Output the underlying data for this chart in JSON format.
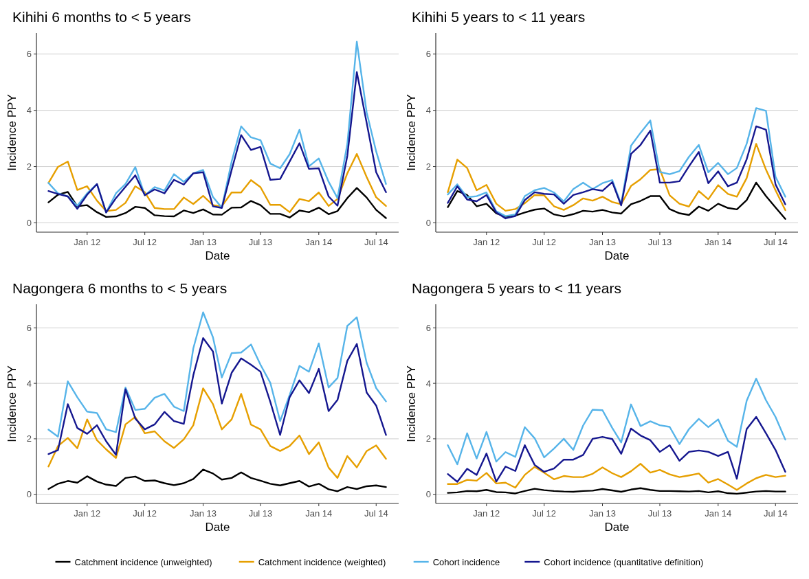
{
  "chart_data": [
    {
      "type": "line",
      "title": "Kihihi 6 months to < 5 years",
      "xlabel": "Date",
      "ylabel": "Incidence PPY",
      "x": [
        "2011-09",
        "2011-10",
        "2011-11",
        "2011-12",
        "2012-01",
        "2012-02",
        "2012-03",
        "2012-04",
        "2012-05",
        "2012-06",
        "2012-07",
        "2012-08",
        "2012-09",
        "2012-10",
        "2012-11",
        "2012-12",
        "2013-01",
        "2013-02",
        "2013-03",
        "2013-04",
        "2013-05",
        "2013-06",
        "2013-07",
        "2013-08",
        "2013-09",
        "2013-10",
        "2013-11",
        "2013-12",
        "2014-01",
        "2014-02",
        "2014-03",
        "2014-04",
        "2014-05",
        "2014-06",
        "2014-07",
        "2014-08"
      ],
      "xlim": [
        "2011-07-25",
        "2014-09-10"
      ],
      "xticks": [
        {
          "value": "2012-01",
          "label": "Jan 12"
        },
        {
          "value": "2012-07",
          "label": "Jul 12"
        },
        {
          "value": "2013-01",
          "label": "Jan 13"
        },
        {
          "value": "2013-07",
          "label": "Jul 13"
        },
        {
          "value": "2014-01",
          "label": "Jan 14"
        },
        {
          "value": "2014-07",
          "label": "Jul 14"
        }
      ],
      "ylim": [
        -0.33,
        6.75
      ],
      "yticks": [
        0,
        2,
        4,
        6
      ],
      "grid": "y",
      "legend": "bottom",
      "series": [
        {
          "name": "Catchment incidence (unweighted)",
          "color": "#000000",
          "values": [
            0.73,
            1.0,
            1.1,
            0.59,
            0.63,
            0.38,
            0.21,
            0.23,
            0.35,
            0.57,
            0.53,
            0.27,
            0.24,
            0.23,
            0.44,
            0.35,
            0.48,
            0.3,
            0.29,
            0.54,
            0.55,
            0.78,
            0.63,
            0.32,
            0.32,
            0.19,
            0.44,
            0.38,
            0.54,
            0.31,
            0.42,
            0.88,
            1.24,
            0.9,
            0.46,
            0.17
          ]
        },
        {
          "name": "Catchment incidence (weighted)",
          "color": "#e69f00",
          "values": [
            1.42,
            1.99,
            2.18,
            1.17,
            1.3,
            0.79,
            0.42,
            0.46,
            0.71,
            1.3,
            1.09,
            0.53,
            0.49,
            0.49,
            0.9,
            0.67,
            0.96,
            0.63,
            0.59,
            1.08,
            1.08,
            1.52,
            1.27,
            0.64,
            0.64,
            0.38,
            0.85,
            0.77,
            1.08,
            0.6,
            0.85,
            1.76,
            2.45,
            1.63,
            0.91,
            0.6
          ]
        },
        {
          "name": "Cohort incidence",
          "color": "#56b4e9",
          "values": [
            1.42,
            1.05,
            0.94,
            0.61,
            1.05,
            1.38,
            0.37,
            1.05,
            1.38,
            1.98,
            0.98,
            1.27,
            1.15,
            1.73,
            1.46,
            1.76,
            1.88,
            0.92,
            0.54,
            2.18,
            3.43,
            3.04,
            2.94,
            2.11,
            1.94,
            2.44,
            3.31,
            2.01,
            2.29,
            1.46,
            0.88,
            2.8,
            6.44,
            3.93,
            2.54,
            1.38
          ]
        },
        {
          "name": "Cohort incidence (quantitative definition)",
          "color": "#15178f",
          "values": [
            1.13,
            1.03,
            0.94,
            0.5,
            1.0,
            1.38,
            0.37,
            0.88,
            1.28,
            1.69,
            0.98,
            1.19,
            1.05,
            1.53,
            1.36,
            1.76,
            1.8,
            0.59,
            0.53,
            1.88,
            3.12,
            2.59,
            2.7,
            1.53,
            1.56,
            2.18,
            2.83,
            1.92,
            1.94,
            0.94,
            0.61,
            2.38,
            5.36,
            3.56,
            1.8,
            1.09
          ]
        }
      ]
    },
    {
      "type": "line",
      "title": "Kihihi 5 years to < 11 years",
      "xlabel": "Date",
      "ylabel": "Incidence PPY",
      "x": [
        "2011-09",
        "2011-10",
        "2011-11",
        "2011-12",
        "2012-01",
        "2012-02",
        "2012-03",
        "2012-04",
        "2012-05",
        "2012-06",
        "2012-07",
        "2012-08",
        "2012-09",
        "2012-10",
        "2012-11",
        "2012-12",
        "2013-01",
        "2013-02",
        "2013-03",
        "2013-04",
        "2013-05",
        "2013-06",
        "2013-07",
        "2013-08",
        "2013-09",
        "2013-10",
        "2013-11",
        "2013-12",
        "2014-01",
        "2014-02",
        "2014-03",
        "2014-04",
        "2014-05",
        "2014-06",
        "2014-07",
        "2014-08"
      ],
      "xlim": [
        "2011-07-25",
        "2014-09-10"
      ],
      "xticks": [
        {
          "value": "2012-01",
          "label": "Jan 12"
        },
        {
          "value": "2012-07",
          "label": "Jul 12"
        },
        {
          "value": "2013-01",
          "label": "Jan 13"
        },
        {
          "value": "2013-07",
          "label": "Jul 13"
        },
        {
          "value": "2014-01",
          "label": "Jan 14"
        },
        {
          "value": "2014-07",
          "label": "Jul 14"
        }
      ],
      "ylim": [
        -0.33,
        6.75
      ],
      "yticks": [
        0,
        2,
        4,
        6
      ],
      "grid": "y",
      "series": [
        {
          "color": "#000000",
          "values": [
            0.56,
            1.13,
            0.99,
            0.59,
            0.68,
            0.34,
            0.22,
            0.26,
            0.37,
            0.47,
            0.51,
            0.3,
            0.23,
            0.31,
            0.43,
            0.4,
            0.46,
            0.37,
            0.33,
            0.66,
            0.78,
            0.95,
            0.95,
            0.49,
            0.34,
            0.28,
            0.58,
            0.43,
            0.68,
            0.53,
            0.48,
            0.81,
            1.43,
            0.95,
            0.55,
            0.14
          ]
        },
        {
          "color": "#e69f00",
          "values": [
            1.09,
            2.25,
            1.95,
            1.16,
            1.35,
            0.68,
            0.43,
            0.49,
            0.7,
            0.99,
            0.98,
            0.59,
            0.46,
            0.63,
            0.87,
            0.79,
            0.93,
            0.74,
            0.66,
            1.31,
            1.55,
            1.88,
            1.91,
            0.98,
            0.68,
            0.58,
            1.13,
            0.84,
            1.34,
            1.03,
            0.93,
            1.59,
            2.81,
            1.89,
            1.16,
            0.45
          ]
        },
        {
          "color": "#56b4e9",
          "values": [
            1.01,
            1.37,
            0.91,
            0.95,
            1.08,
            0.41,
            0.24,
            0.3,
            0.95,
            1.16,
            1.24,
            1.08,
            0.76,
            1.2,
            1.43,
            1.2,
            1.41,
            1.52,
            0.66,
            2.74,
            3.2,
            3.64,
            1.81,
            1.73,
            1.84,
            2.35,
            2.77,
            1.8,
            2.13,
            1.73,
            1.95,
            2.81,
            4.08,
            3.98,
            1.64,
            0.93
          ]
        },
        {
          "color": "#15178f",
          "values": [
            0.71,
            1.3,
            0.83,
            0.77,
            0.99,
            0.37,
            0.16,
            0.24,
            0.81,
            1.09,
            1.03,
            1.01,
            0.68,
            0.99,
            1.09,
            1.2,
            1.14,
            1.45,
            0.62,
            2.45,
            2.77,
            3.28,
            1.43,
            1.43,
            1.48,
            2.01,
            2.52,
            1.41,
            1.83,
            1.3,
            1.43,
            2.26,
            3.43,
            3.31,
            1.37,
            0.66
          ]
        }
      ]
    },
    {
      "type": "line",
      "title": "Nagongera 6 months to < 5 years",
      "xlabel": "Date",
      "ylabel": "Incidence PPY",
      "x": [
        "2011-09",
        "2011-10",
        "2011-11",
        "2011-12",
        "2012-01",
        "2012-02",
        "2012-03",
        "2012-04",
        "2012-05",
        "2012-06",
        "2012-07",
        "2012-08",
        "2012-09",
        "2012-10",
        "2012-11",
        "2012-12",
        "2013-01",
        "2013-02",
        "2013-03",
        "2013-04",
        "2013-05",
        "2013-06",
        "2013-07",
        "2013-08",
        "2013-09",
        "2013-10",
        "2013-11",
        "2013-12",
        "2014-01",
        "2014-02",
        "2014-03",
        "2014-04",
        "2014-05",
        "2014-06",
        "2014-07",
        "2014-08"
      ],
      "xlim": [
        "2011-07-25",
        "2014-09-10"
      ],
      "xticks": [
        {
          "value": "2012-01",
          "label": "Jan 12"
        },
        {
          "value": "2012-07",
          "label": "Jul 12"
        },
        {
          "value": "2013-01",
          "label": "Jan 13"
        },
        {
          "value": "2013-07",
          "label": "Jul 13"
        },
        {
          "value": "2014-01",
          "label": "Jan 14"
        },
        {
          "value": "2014-07",
          "label": "Jul 14"
        }
      ],
      "ylim": [
        -0.33,
        6.85
      ],
      "yticks": [
        0,
        2,
        4,
        6
      ],
      "grid": "y",
      "series": [
        {
          "color": "#000000",
          "values": [
            0.19,
            0.38,
            0.48,
            0.42,
            0.65,
            0.46,
            0.35,
            0.3,
            0.59,
            0.64,
            0.48,
            0.5,
            0.4,
            0.33,
            0.4,
            0.55,
            0.89,
            0.75,
            0.53,
            0.59,
            0.79,
            0.59,
            0.49,
            0.38,
            0.32,
            0.4,
            0.48,
            0.28,
            0.38,
            0.18,
            0.11,
            0.26,
            0.19,
            0.29,
            0.32,
            0.26
          ]
        },
        {
          "color": "#e69f00",
          "values": [
            1.0,
            1.74,
            2.03,
            1.66,
            2.7,
            1.95,
            1.62,
            1.31,
            2.52,
            2.79,
            2.2,
            2.27,
            1.91,
            1.67,
            1.98,
            2.49,
            3.82,
            3.25,
            2.34,
            2.7,
            3.62,
            2.51,
            2.34,
            1.74,
            1.56,
            1.74,
            2.12,
            1.45,
            1.87,
            0.96,
            0.59,
            1.38,
            0.97,
            1.56,
            1.76,
            1.28
          ]
        },
        {
          "color": "#56b4e9",
          "values": [
            2.33,
            2.08,
            4.07,
            3.5,
            2.98,
            2.93,
            2.34,
            2.24,
            3.85,
            3.04,
            3.08,
            3.48,
            3.62,
            3.16,
            3.0,
            5.26,
            6.56,
            5.66,
            4.21,
            5.09,
            5.11,
            5.4,
            4.67,
            4.02,
            2.64,
            3.58,
            4.63,
            4.42,
            5.44,
            3.85,
            4.19,
            6.07,
            6.38,
            4.74,
            3.83,
            3.35
          ]
        },
        {
          "color": "#15178f",
          "values": [
            1.45,
            1.59,
            3.25,
            2.39,
            2.18,
            2.49,
            1.91,
            1.42,
            3.79,
            2.73,
            2.34,
            2.52,
            2.97,
            2.64,
            2.54,
            4.29,
            5.63,
            5.15,
            3.27,
            4.38,
            4.9,
            4.67,
            4.42,
            3.33,
            2.14,
            3.5,
            4.11,
            3.65,
            4.52,
            3.0,
            3.4,
            4.81,
            5.42,
            3.67,
            3.2,
            2.14
          ]
        }
      ]
    },
    {
      "type": "line",
      "title": "Nagongera 5 years to < 11 years",
      "xlabel": "Date",
      "ylabel": "Incidence PPY",
      "x": [
        "2011-09",
        "2011-10",
        "2011-11",
        "2011-12",
        "2012-01",
        "2012-02",
        "2012-03",
        "2012-04",
        "2012-05",
        "2012-06",
        "2012-07",
        "2012-08",
        "2012-09",
        "2012-10",
        "2012-11",
        "2012-12",
        "2013-01",
        "2013-02",
        "2013-03",
        "2013-04",
        "2013-05",
        "2013-06",
        "2013-07",
        "2013-08",
        "2013-09",
        "2013-10",
        "2013-11",
        "2013-12",
        "2014-01",
        "2014-02",
        "2014-03",
        "2014-04",
        "2014-05",
        "2014-06",
        "2014-07",
        "2014-08"
      ],
      "xlim": [
        "2011-07-25",
        "2014-09-10"
      ],
      "xticks": [
        {
          "value": "2012-01",
          "label": "Jan 12"
        },
        {
          "value": "2012-07",
          "label": "Jul 12"
        },
        {
          "value": "2013-01",
          "label": "Jan 13"
        },
        {
          "value": "2013-07",
          "label": "Jul 13"
        },
        {
          "value": "2014-01",
          "label": "Jan 14"
        },
        {
          "value": "2014-07",
          "label": "Jul 14"
        }
      ],
      "ylim": [
        -0.33,
        6.85
      ],
      "yticks": [
        0,
        2,
        4,
        6
      ],
      "grid": "y",
      "series": [
        {
          "color": "#000000",
          "values": [
            0.05,
            0.07,
            0.12,
            0.11,
            0.16,
            0.08,
            0.07,
            0.03,
            0.12,
            0.2,
            0.15,
            0.12,
            0.1,
            0.09,
            0.12,
            0.13,
            0.19,
            0.14,
            0.09,
            0.17,
            0.22,
            0.16,
            0.12,
            0.12,
            0.11,
            0.1,
            0.12,
            0.07,
            0.11,
            0.04,
            0.02,
            0.06,
            0.1,
            0.12,
            0.1,
            0.1
          ]
        },
        {
          "color": "#e69f00",
          "values": [
            0.37,
            0.37,
            0.52,
            0.49,
            0.77,
            0.39,
            0.42,
            0.24,
            0.7,
            0.99,
            0.78,
            0.54,
            0.66,
            0.62,
            0.62,
            0.74,
            0.97,
            0.76,
            0.62,
            0.83,
            1.1,
            0.78,
            0.88,
            0.72,
            0.62,
            0.68,
            0.75,
            0.42,
            0.55,
            0.35,
            0.16,
            0.39,
            0.58,
            0.7,
            0.62,
            0.67
          ]
        },
        {
          "color": "#56b4e9",
          "values": [
            1.77,
            1.08,
            2.2,
            1.29,
            2.25,
            1.18,
            1.52,
            1.35,
            2.42,
            2.02,
            1.33,
            1.65,
            2.0,
            1.6,
            2.48,
            3.05,
            3.03,
            2.39,
            1.87,
            3.24,
            2.46,
            2.63,
            2.49,
            2.43,
            1.81,
            2.35,
            2.72,
            2.42,
            2.7,
            1.93,
            1.71,
            3.37,
            4.17,
            3.39,
            2.79,
            1.97
          ]
        },
        {
          "color": "#15178f",
          "values": [
            0.73,
            0.45,
            0.92,
            0.7,
            1.47,
            0.46,
            1.0,
            0.84,
            1.77,
            1.06,
            0.81,
            0.93,
            1.25,
            1.25,
            1.42,
            2.0,
            2.07,
            1.99,
            1.46,
            2.37,
            2.12,
            1.95,
            1.53,
            1.77,
            1.21,
            1.53,
            1.58,
            1.53,
            1.38,
            1.53,
            0.56,
            2.35,
            2.79,
            2.2,
            1.6,
            0.81
          ]
        }
      ]
    }
  ]
}
